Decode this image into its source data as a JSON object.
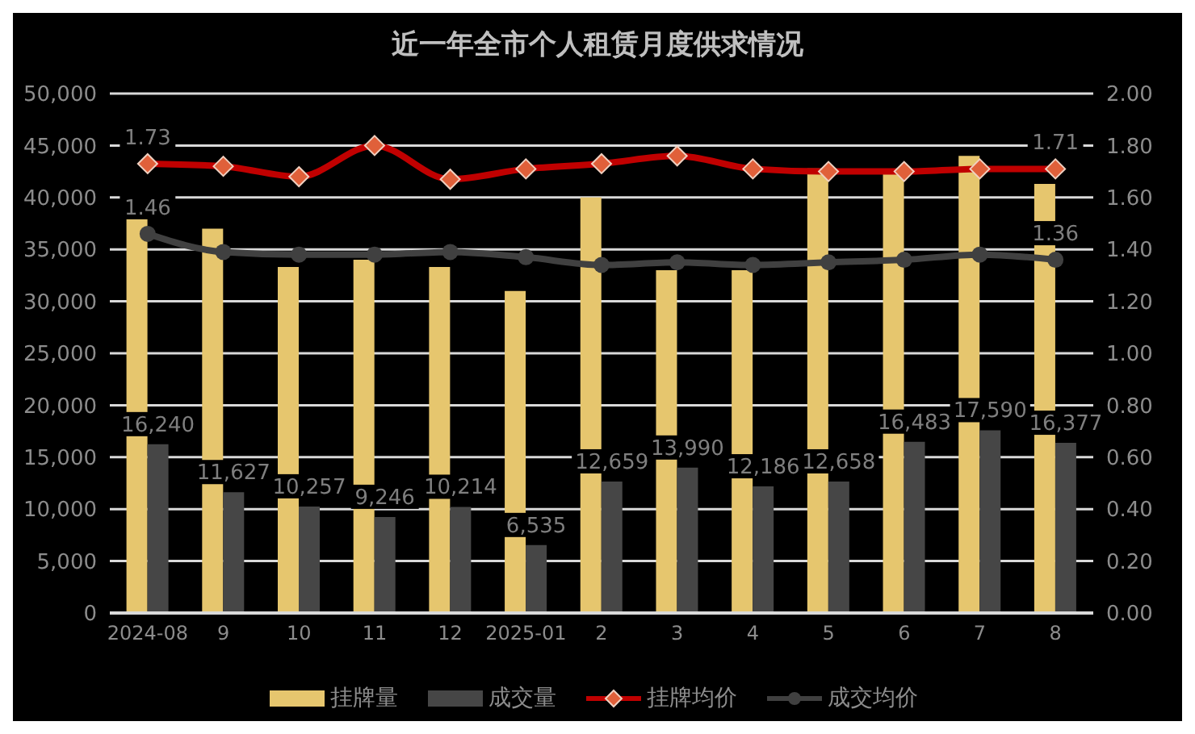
{
  "chart_data": {
    "type": "bar",
    "title": "近一年全市个人租赁月度供求情况",
    "categories": [
      "2024-08",
      "9",
      "10",
      "11",
      "12",
      "2025-01",
      "2",
      "3",
      "4",
      "5",
      "6",
      "7",
      "8"
    ],
    "series": [
      {
        "name": "挂牌量",
        "color": "#e6c66e",
        "values": [
          38000,
          37000,
          33300,
          34000,
          33300,
          31000,
          40000,
          33000,
          33000,
          42800,
          42500,
          44000,
          41300
        ]
      },
      {
        "name": "成交量",
        "color": "#464646",
        "values": [
          16240,
          11627,
          10257,
          9246,
          10214,
          6535,
          12659,
          13990,
          12186,
          12658,
          16483,
          17590,
          16377
        ],
        "value_labels": [
          "16,240",
          "11,627",
          "10,257",
          "9,246",
          "10,214",
          "6,535",
          "12,659",
          "13,990",
          "12,186",
          "12,658",
          "16,483",
          "17,590",
          "16,377"
        ]
      },
      {
        "name": "挂牌均价",
        "type": "line",
        "axis": "y2",
        "color": "#c00000",
        "marker": "diamond",
        "values": [
          1.73,
          1.72,
          1.68,
          1.8,
          1.67,
          1.71,
          1.73,
          1.76,
          1.71,
          1.7,
          1.7,
          1.71,
          1.71
        ],
        "value_labels": [
          "1.73",
          null,
          null,
          null,
          null,
          null,
          null,
          null,
          null,
          null,
          null,
          null,
          "1.71"
        ]
      },
      {
        "name": "成交均价",
        "type": "line",
        "axis": "y2",
        "color": "#404040",
        "marker": "circle",
        "values": [
          1.46,
          1.39,
          1.38,
          1.38,
          1.39,
          1.37,
          1.34,
          1.35,
          1.34,
          1.35,
          1.36,
          1.38,
          1.36
        ],
        "value_labels": [
          "1.46",
          null,
          null,
          null,
          null,
          null,
          null,
          null,
          null,
          null,
          null,
          null,
          "1.36"
        ]
      }
    ],
    "ylim": [
      0,
      50000
    ],
    "yticks": [
      {
        "value": 0,
        "label": "0"
      },
      {
        "value": 5000,
        "label": "5,000"
      },
      {
        "value": 10000,
        "label": "10,000"
      },
      {
        "value": 15000,
        "label": "15,000"
      },
      {
        "value": 20000,
        "label": "20,000"
      },
      {
        "value": 25000,
        "label": "25,000"
      },
      {
        "value": 30000,
        "label": "30,000"
      },
      {
        "value": 35000,
        "label": "35,000"
      },
      {
        "value": 40000,
        "label": "40,000"
      },
      {
        "value": 45000,
        "label": "45,000"
      },
      {
        "value": 50000,
        "label": "50,000"
      }
    ],
    "y2lim": [
      0,
      2
    ],
    "y2ticks": [
      {
        "value": 0,
        "label": "0.00"
      },
      {
        "value": 0.2,
        "label": "0.20"
      },
      {
        "value": 0.4,
        "label": "0.40"
      },
      {
        "value": 0.6,
        "label": "0.60"
      },
      {
        "value": 0.8,
        "label": "0.80"
      },
      {
        "value": 1,
        "label": "1.00"
      },
      {
        "value": 1.2,
        "label": "1.20"
      },
      {
        "value": 1.4,
        "label": "1.40"
      },
      {
        "value": 1.6,
        "label": "1.60"
      },
      {
        "value": 1.8,
        "label": "1.80"
      },
      {
        "value": 2,
        "label": "2.00"
      }
    ],
    "grid": "y",
    "legend": "bottom",
    "line_style": "solid"
  }
}
